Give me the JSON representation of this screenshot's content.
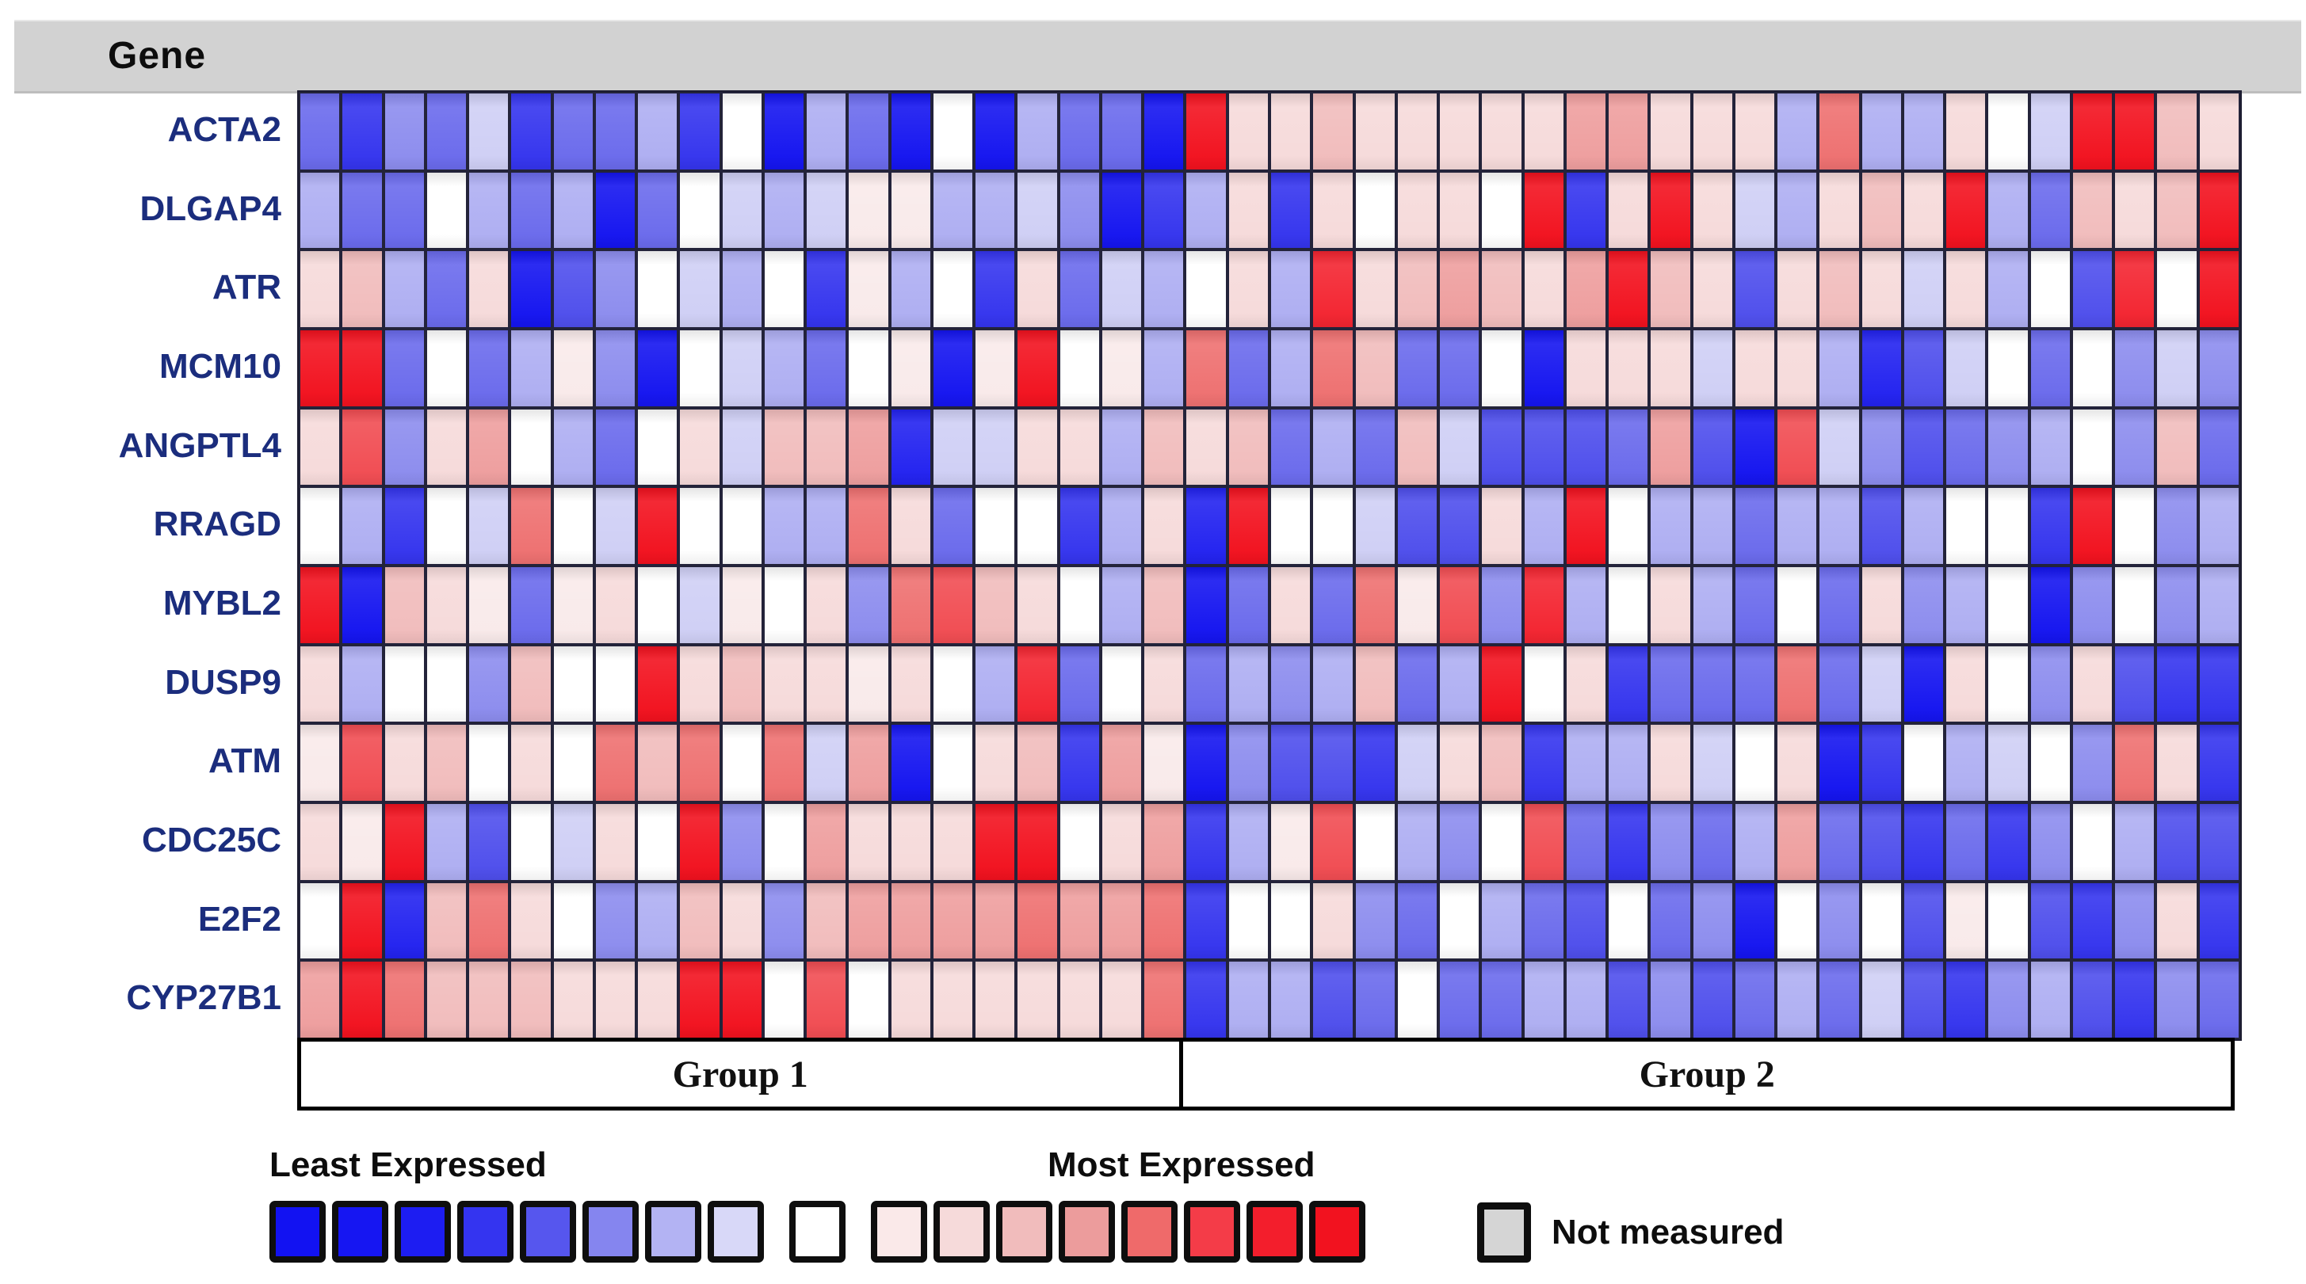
{
  "header": {
    "title": "Gene"
  },
  "genes": [
    "ACTA2",
    "DLGAP4",
    "ATR",
    "MCM10",
    "ANGPTL4",
    "RRAGD",
    "MYBL2",
    "DUSP9",
    "ATM",
    "CDC25C",
    "E2F2",
    "CYP27B1"
  ],
  "groups": [
    {
      "label": "Group 1",
      "columns": 21
    },
    {
      "label": "Group 2",
      "columns": 25
    }
  ],
  "legend": {
    "least_label": "Least Expressed",
    "most_label": "Most Expressed",
    "not_measured_label": "Not measured",
    "not_measured_color": "#d5d5d5"
  },
  "chart_data": {
    "type": "heatmap",
    "title": "Gene expression heatmap",
    "rows": [
      "ACTA2",
      "DLGAP4",
      "ATR",
      "MCM10",
      "ANGPTL4",
      "RRAGD",
      "MYBL2",
      "DUSP9",
      "ATM",
      "CDC25C",
      "E2F2",
      "CYP27B1"
    ],
    "columns_total": 46,
    "column_groups": {
      "Group 1": [
        1,
        21
      ],
      "Group 2": [
        22,
        46
      ]
    },
    "value_scale": "relative expression, -4 = least expressed (blue) to +4 = most expressed (red), 0 = white",
    "palette": {
      "-4": "#1414f0",
      "-3.5": "#2222f0",
      "-3": "#3434ee",
      "-2.5": "#4e4eec",
      "-2": "#6a6aec",
      "-1.5": "#8c8cee",
      "-1": "#aeaef2",
      "-0.5": "#cfcff5",
      "0": "#ffffff",
      "0.5": "#f9eaea",
      "1": "#f6dada",
      "1.5": "#f1bcbc",
      "2": "#ee9e9e",
      "2.5": "#ee7070",
      "3": "#f14c52",
      "3.5": "#f32430",
      "4": "#f2111e"
    },
    "legend_swatches": [
      "#1212f2",
      "#1616f2",
      "#1d1df2",
      "#3434f0",
      "#5656ee",
      "#8585ef",
      "#b3b3f3",
      "#d8d8f8",
      "#ffffff",
      "#fae9e9",
      "#f6dada",
      "#f1bcbc",
      "#ec9c9c",
      "#ef6a6a",
      "#f43c48",
      "#f31e2c",
      "#f2121f"
    ],
    "values": [
      [
        -2,
        -3,
        -1.5,
        -2,
        -0.5,
        -3,
        -2,
        -2,
        -1,
        -3,
        0,
        -4,
        -1,
        -2,
        -4,
        0,
        -4,
        -1,
        -2,
        -2,
        -4,
        4,
        1,
        1,
        1.5,
        1,
        1,
        1,
        1,
        1,
        2,
        2,
        1,
        1,
        1,
        -1,
        2.5,
        -1,
        -1,
        1,
        0,
        -0.5,
        4,
        4,
        1.5,
        1
      ],
      [
        -1,
        -2,
        -2,
        0,
        -1,
        -2,
        -1,
        -4,
        -2,
        0,
        -0.5,
        -1,
        -0.5,
        0.5,
        0.5,
        -1,
        -1,
        -0.5,
        -1.5,
        -4,
        -3,
        -1,
        1,
        -3,
        1,
        0,
        1,
        1,
        0,
        4,
        -3,
        1,
        4,
        1,
        -0.5,
        -1,
        1,
        1.5,
        1,
        4,
        -1,
        -2,
        1.5,
        1,
        1.5,
        4
      ],
      [
        1,
        1.5,
        -1,
        -2,
        1,
        -4,
        -2.5,
        -1.5,
        0,
        -0.5,
        -1,
        0,
        -3,
        0.5,
        -1,
        0,
        -3,
        1,
        -2,
        -0.5,
        -1,
        0,
        1,
        -1,
        3.5,
        1,
        1.5,
        2,
        1.5,
        1,
        2,
        4,
        1.5,
        1,
        -2.5,
        1,
        1.5,
        1,
        -0.5,
        1,
        -1,
        0,
        -2.5,
        3.5,
        0,
        4
      ],
      [
        4,
        4,
        -2,
        0,
        -2,
        -1,
        0.5,
        -1.5,
        -4,
        0,
        -0.5,
        -1,
        -2,
        0,
        0.5,
        -4,
        0.5,
        4,
        0,
        0.5,
        -1,
        2.5,
        -2,
        -1,
        2.5,
        1.5,
        -2,
        -2,
        0,
        -4,
        1,
        1,
        1,
        -0.5,
        1,
        1,
        -1,
        -3.5,
        -2.5,
        -0.5,
        0,
        -2,
        0,
        -1.5,
        -0.5,
        -1.5
      ],
      [
        1,
        3,
        -1.5,
        1,
        2,
        0,
        -1,
        -2,
        0,
        1,
        -0.5,
        1.5,
        1.5,
        2,
        -3.5,
        -0.5,
        -0.5,
        1,
        1,
        -1,
        1.5,
        1,
        1.5,
        -2,
        -1,
        -2,
        1.5,
        -0.5,
        -2.5,
        -2.5,
        -2.5,
        -2,
        2,
        -2.5,
        -4,
        3,
        -0.5,
        -1.5,
        -2.5,
        -2,
        -1.5,
        -1,
        0,
        -1.5,
        1.5,
        -2
      ],
      [
        0,
        -1,
        -3,
        0,
        -0.5,
        2.5,
        0,
        -0.5,
        4,
        0,
        0,
        -1,
        -1,
        2.5,
        1,
        -2,
        0,
        0,
        -3,
        -1,
        1,
        -3.5,
        4,
        0,
        0,
        -0.5,
        -2.5,
        -2.5,
        1,
        -1,
        4,
        0,
        -1,
        -1,
        -2,
        -1,
        -1,
        -2.5,
        -1,
        0,
        0,
        -3,
        4,
        0,
        -1.5,
        -1
      ],
      [
        4,
        -4,
        1.5,
        1,
        0.5,
        -2,
        0.5,
        1,
        0,
        -0.5,
        0.5,
        0,
        1,
        -1.5,
        2.5,
        3,
        1.5,
        1,
        0,
        -1,
        1.5,
        -4,
        -2,
        1,
        -2,
        2.5,
        0.5,
        3,
        -1.5,
        3.5,
        -1,
        0,
        1,
        -1,
        -2,
        0,
        -2,
        1,
        -1.5,
        -1,
        0,
        -4,
        -1.5,
        0,
        -1.5,
        -1
      ],
      [
        1,
        -1,
        0,
        0,
        -1.5,
        1.5,
        0,
        0,
        4,
        1,
        1.5,
        1,
        1,
        0.5,
        1,
        0,
        -1,
        3.5,
        -2,
        0,
        1,
        -2,
        -1,
        -1.5,
        -1,
        1.5,
        -2,
        -1,
        4,
        0,
        1,
        -3,
        -2,
        -2,
        -2,
        2.5,
        -2,
        -0.5,
        -4,
        1,
        0,
        -1.5,
        1,
        -2.5,
        -3,
        -3
      ],
      [
        0.5,
        3,
        1,
        1.5,
        0,
        1,
        0,
        2.5,
        1.5,
        2.5,
        0,
        2.5,
        -0.5,
        2,
        -4,
        0,
        1,
        1.5,
        -3,
        2,
        0.5,
        -4,
        -1.5,
        -2.5,
        -2.5,
        -3,
        -0.5,
        1,
        1.5,
        -3,
        -1,
        -1,
        1,
        -0.5,
        0,
        1,
        -4,
        -3,
        0,
        -1,
        -0.5,
        0,
        -1.5,
        2.5,
        1,
        -3
      ],
      [
        1,
        0.5,
        4,
        -1,
        -2.5,
        0,
        -0.5,
        1,
        0,
        4,
        -1.5,
        0,
        2,
        1,
        1,
        1,
        4,
        4,
        0,
        1,
        2,
        -3,
        -1,
        0.5,
        3,
        0,
        -1,
        -1.5,
        0,
        3,
        -2,
        -3,
        -1.5,
        -2,
        -1,
        2,
        -2,
        -2.5,
        -3,
        -2,
        -3,
        -1.5,
        0,
        -1,
        -2.5,
        -2.5
      ],
      [
        0,
        4,
        -3.5,
        1.5,
        2.5,
        1,
        0,
        -1.5,
        -1,
        1.5,
        1,
        -1.5,
        1.5,
        2,
        2,
        2,
        2,
        2.5,
        2,
        2,
        2.5,
        -3,
        0,
        0,
        1,
        -1.5,
        -2,
        0,
        -1,
        -2,
        -2.5,
        0,
        -2,
        -1.5,
        -4,
        0,
        -1.5,
        0,
        -2.5,
        0.5,
        0,
        -2.5,
        -3,
        -1.5,
        1,
        -3
      ],
      [
        2,
        4,
        2.5,
        1.5,
        1.5,
        1.5,
        1,
        1,
        1,
        4,
        4,
        0,
        3,
        0,
        1,
        1,
        1,
        1,
        1,
        1,
        2.5,
        -3,
        -1,
        -1,
        -2.5,
        -2,
        0,
        -2,
        -2,
        -1,
        -1,
        -2.5,
        -1.5,
        -2.5,
        -2,
        -1,
        -2,
        -0.5,
        -2.5,
        -3,
        -1.5,
        -1,
        -2.5,
        -3,
        -1.5,
        -2
      ]
    ]
  }
}
